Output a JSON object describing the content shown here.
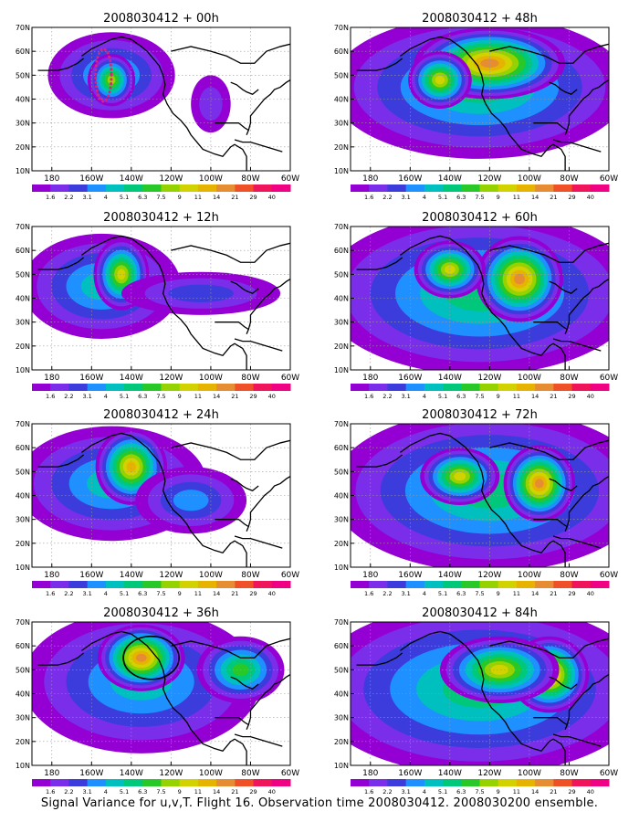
{
  "caption": "Signal Variance for u,v,T. Flight 16. Observation time 2008030412. 2008030200 ensemble.",
  "colorbar": {
    "levels": [
      "1.6",
      "2.2",
      "3.1",
      "4",
      "5.1",
      "6.3",
      "7.5",
      "9",
      "11",
      "14",
      "21",
      "29",
      "40"
    ],
    "colors": [
      "#9400d3",
      "#7b2eea",
      "#3c3cdc",
      "#1e90ff",
      "#00bfbf",
      "#00c87a",
      "#28c828",
      "#96d200",
      "#d2d200",
      "#e6b400",
      "#e68c32",
      "#f05028",
      "#f0145a",
      "#f00082"
    ]
  },
  "axes": {
    "x_ticks": [
      "180",
      "160W",
      "140W",
      "120W",
      "100W",
      "80W",
      "60W"
    ],
    "y_ticks": [
      "10N",
      "20N",
      "30N",
      "40N",
      "50N",
      "60N",
      "70N"
    ],
    "lon_range": [
      170,
      300
    ],
    "lat_range": [
      10,
      70
    ]
  },
  "chart_data": [
    {
      "type": "heatmap",
      "title": "2008030412 + 00h",
      "blobs": [
        {
          "lon": 210,
          "lat": 50,
          "rx": 32,
          "ry": 18,
          "level": 4
        },
        {
          "lon": 210,
          "lat": 48,
          "rx": 12,
          "ry": 11,
          "level": 7
        },
        {
          "lon": 260,
          "lat": 38,
          "rx": 10,
          "ry": 12,
          "level": 1
        }
      ],
      "overlays": [
        {
          "kind": "dotted-ellipse",
          "lon": 206,
          "lat": 50,
          "rx": 4,
          "ry": 11,
          "color": "#e0207a"
        }
      ]
    },
    {
      "type": "heatmap",
      "title": "2008030412 + 12h",
      "blobs": [
        {
          "lon": 205,
          "lat": 45,
          "rx": 40,
          "ry": 22,
          "level": 4
        },
        {
          "lon": 215,
          "lat": 50,
          "rx": 14,
          "ry": 15,
          "level": 8
        },
        {
          "lon": 255,
          "lat": 42,
          "rx": 40,
          "ry": 9,
          "level": 2
        }
      ],
      "overlays": []
    },
    {
      "type": "heatmap",
      "title": "2008030412 + 24h",
      "blobs": [
        {
          "lon": 210,
          "lat": 45,
          "rx": 48,
          "ry": 24,
          "level": 4
        },
        {
          "lon": 220,
          "lat": 52,
          "rx": 18,
          "ry": 16,
          "level": 9
        },
        {
          "lon": 250,
          "lat": 38,
          "rx": 28,
          "ry": 14,
          "level": 3
        }
      ],
      "overlays": []
    },
    {
      "type": "heatmap",
      "title": "2008030412 + 36h",
      "blobs": [
        {
          "lon": 225,
          "lat": 45,
          "rx": 60,
          "ry": 30,
          "level": 4
        },
        {
          "lon": 225,
          "lat": 55,
          "rx": 22,
          "ry": 14,
          "level": 10
        },
        {
          "lon": 275,
          "lat": 50,
          "rx": 22,
          "ry": 14,
          "level": 6
        }
      ],
      "overlays": [
        {
          "kind": "solid-ellipse",
          "lon": 230,
          "lat": 55,
          "rx": 14,
          "ry": 9,
          "color": "#000000"
        }
      ]
    },
    {
      "type": "heatmap",
      "title": "2008030412 + 48h",
      "blobs": [
        {
          "lon": 235,
          "lat": 45,
          "rx": 75,
          "ry": 30,
          "level": 5
        },
        {
          "lon": 240,
          "lat": 55,
          "rx": 38,
          "ry": 15,
          "level": 10
        },
        {
          "lon": 215,
          "lat": 48,
          "rx": 16,
          "ry": 12,
          "level": 8
        }
      ],
      "overlays": []
    },
    {
      "type": "heatmap",
      "title": "2008030412 + 60h",
      "blobs": [
        {
          "lon": 235,
          "lat": 42,
          "rx": 80,
          "ry": 34,
          "level": 5
        },
        {
          "lon": 255,
          "lat": 48,
          "rx": 22,
          "ry": 18,
          "level": 10
        },
        {
          "lon": 220,
          "lat": 52,
          "rx": 18,
          "ry": 12,
          "level": 8
        }
      ],
      "overlays": []
    },
    {
      "type": "heatmap",
      "title": "2008030412 + 72h",
      "blobs": [
        {
          "lon": 240,
          "lat": 42,
          "rx": 80,
          "ry": 34,
          "level": 5
        },
        {
          "lon": 265,
          "lat": 45,
          "rx": 18,
          "ry": 16,
          "level": 10
        },
        {
          "lon": 225,
          "lat": 48,
          "rx": 20,
          "ry": 12,
          "level": 8
        }
      ],
      "overlays": []
    },
    {
      "type": "heatmap",
      "title": "2008030412 + 84h",
      "blobs": [
        {
          "lon": 235,
          "lat": 42,
          "rx": 85,
          "ry": 36,
          "level": 5
        },
        {
          "lon": 270,
          "lat": 48,
          "rx": 20,
          "ry": 16,
          "level": 10
        },
        {
          "lon": 245,
          "lat": 50,
          "rx": 30,
          "ry": 14,
          "level": 8
        }
      ],
      "overlays": []
    }
  ]
}
